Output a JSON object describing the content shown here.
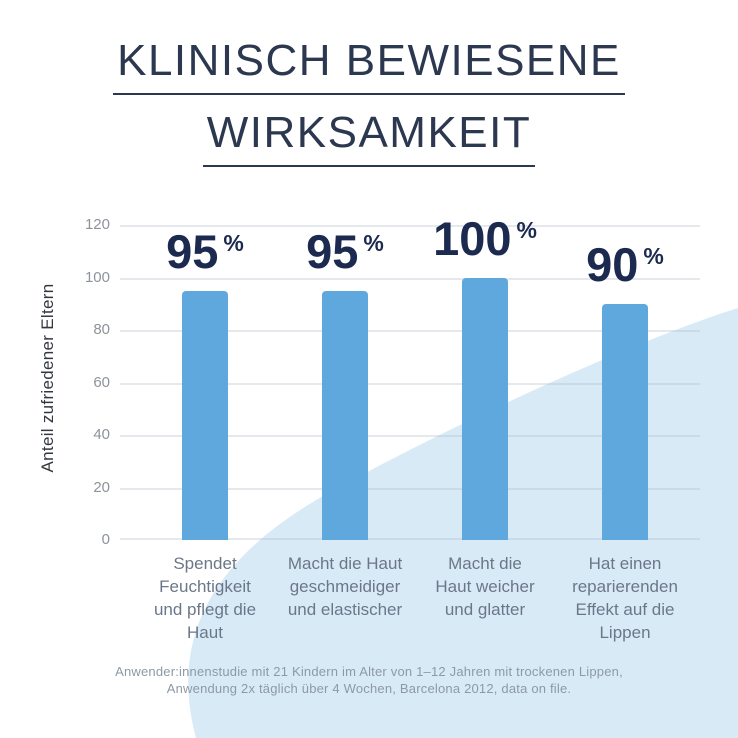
{
  "title": {
    "line1": "KLINISCH BEWIESENE",
    "line2": "WIRKSAMKEIT"
  },
  "chart_data": {
    "type": "bar",
    "title": "KLINISCH BEWIESENE WIRKSAMKEIT",
    "xlabel": "",
    "ylabel": "Anteil zufriedener Eltern",
    "ylim": [
      0,
      120
    ],
    "yticks": [
      0,
      20,
      40,
      60,
      80,
      100,
      120
    ],
    "grid": true,
    "categories": [
      "Spendet Feuchtigkeit und pflegt die Haut",
      "Macht die Haut geschmeidiger und elastischer",
      "Macht die Haut weicher und glatter",
      "Hat einen reparierenden Effekt auf die Lippen"
    ],
    "category_lines": [
      [
        "Spendet",
        "Feuchtigkeit",
        "und pflegt die",
        "Haut"
      ],
      [
        "Macht die Haut",
        "geschmeidiger",
        "und elastischer"
      ],
      [
        "Macht die",
        "Haut weicher",
        "und glatter"
      ],
      [
        "Hat einen",
        "reparierenden",
        "Effekt auf die",
        "Lippen"
      ]
    ],
    "values": [
      95,
      95,
      100,
      90
    ],
    "unit": "%"
  },
  "footnote": {
    "line1": "Anwender:innenstudie mit 21 Kindern im Alter von 1–12 Jahren mit trockenen Lippen,",
    "line2": "Anwendung 2x täglich über 4 Wochen, Barcelona 2012, data on file."
  },
  "colors": {
    "background": "#ffffff",
    "blob": "#d9eaf7",
    "bar": "#5fa8dd",
    "title_text": "#2c3850",
    "value_text": "#1d2a50",
    "category_text": "#6b7788",
    "tick_text": "#8e939b",
    "axis_title_text": "#33383f",
    "footnote_text": "#8d99a6"
  }
}
